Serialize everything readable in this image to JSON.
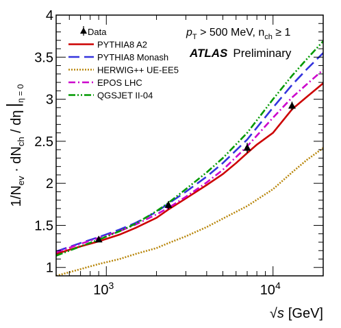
{
  "chart_data": {
    "type": "line",
    "x_scale": "log",
    "xlim": [
      500,
      20000
    ],
    "ylim": [
      0.9,
      4.0
    ],
    "x_ticks": [
      {
        "value": 1000,
        "label_base": "10",
        "label_exp": "3"
      },
      {
        "value": 10000,
        "label_base": "10",
        "label_exp": "4"
      }
    ],
    "y_ticks": [
      {
        "value": 1.0,
        "label": "1"
      },
      {
        "value": 1.5,
        "label": "1.5"
      },
      {
        "value": 2.0,
        "label": "2"
      },
      {
        "value": 2.5,
        "label": "2.5"
      },
      {
        "value": 3.0,
        "label": "3"
      },
      {
        "value": 3.5,
        "label": "3.5"
      },
      {
        "value": 4.0,
        "label": "4"
      }
    ],
    "xlabel": {
      "sqrt": "√",
      "var": "s",
      "unit": "[GeV]"
    },
    "ylabel": {
      "main": "1/N",
      "sub_ev": "ev",
      "mid": " · dN",
      "sub_ch": "ch",
      "tail": " / dη",
      "sub_eta": "η = 0"
    },
    "annotation": {
      "pt_line": "p",
      "pt_sub": "T",
      "pt_rest": " > 500 MeV, n",
      "nch_sub": "ch",
      "nch_rest": " ≥ 1",
      "atlas": "ATLAS",
      "prelim": "Preliminary"
    },
    "data_points": {
      "name": "Data",
      "x": [
        900,
        2360,
        7000,
        13000
      ],
      "y": [
        1.33,
        1.74,
        2.42,
        2.92
      ],
      "err": [
        0.03,
        0.05,
        0.06,
        0.05
      ]
    },
    "series": [
      {
        "name": "PYTHIA8 A2",
        "color": "#cc0000",
        "dash": "",
        "x": [
          500,
          600,
          700,
          900,
          1200,
          1500,
          2000,
          2360,
          3000,
          4000,
          5000,
          6000,
          7000,
          8000,
          10000,
          13000,
          16000,
          20000
        ],
        "y": [
          1.16,
          1.21,
          1.25,
          1.31,
          1.39,
          1.47,
          1.59,
          1.69,
          1.82,
          1.98,
          2.11,
          2.24,
          2.36,
          2.46,
          2.6,
          2.88,
          3.03,
          3.19
        ]
      },
      {
        "name": "PYTHIA8 Monash",
        "color": "#3333dd",
        "dash": "16,7",
        "x": [
          500,
          700,
          900,
          1200,
          1500,
          2000,
          2360,
          3000,
          4000,
          5000,
          7000,
          10000,
          13000,
          16000,
          20000
        ],
        "y": [
          1.19,
          1.29,
          1.36,
          1.45,
          1.53,
          1.66,
          1.76,
          1.9,
          2.08,
          2.24,
          2.52,
          2.9,
          3.17,
          3.36,
          3.55
        ]
      },
      {
        "name": "HERWIG++ UE-EE5",
        "color": "#b8860b",
        "dash": "2,2",
        "x": [
          500,
          700,
          900,
          1200,
          1500,
          2000,
          2360,
          3000,
          4000,
          5000,
          7000,
          10000,
          13000,
          16000,
          20000
        ],
        "y": [
          0.9,
          0.98,
          1.04,
          1.1,
          1.16,
          1.23,
          1.29,
          1.37,
          1.48,
          1.58,
          1.73,
          1.93,
          2.13,
          2.28,
          2.42
        ]
      },
      {
        "name": "EPOS LHC",
        "color": "#cc00cc",
        "dash": "10,4,2,4",
        "x": [
          500,
          700,
          900,
          1200,
          1500,
          2000,
          2360,
          3000,
          4000,
          5000,
          7000,
          10000,
          13000,
          16000,
          20000
        ],
        "y": [
          1.18,
          1.28,
          1.35,
          1.43,
          1.51,
          1.63,
          1.71,
          1.84,
          2.01,
          2.16,
          2.44,
          2.78,
          3.02,
          3.18,
          3.35
        ]
      },
      {
        "name": "QGSJET II-04",
        "color": "#009900",
        "dash": "10,3,2,3,2,3",
        "x": [
          500,
          700,
          900,
          1200,
          1500,
          2000,
          2360,
          3000,
          4000,
          5000,
          7000,
          10000,
          13000,
          16000,
          20000
        ],
        "y": [
          1.14,
          1.25,
          1.33,
          1.43,
          1.52,
          1.67,
          1.77,
          1.93,
          2.13,
          2.3,
          2.6,
          3.0,
          3.28,
          3.48,
          3.69
        ]
      }
    ],
    "legend_position": "top-left"
  }
}
